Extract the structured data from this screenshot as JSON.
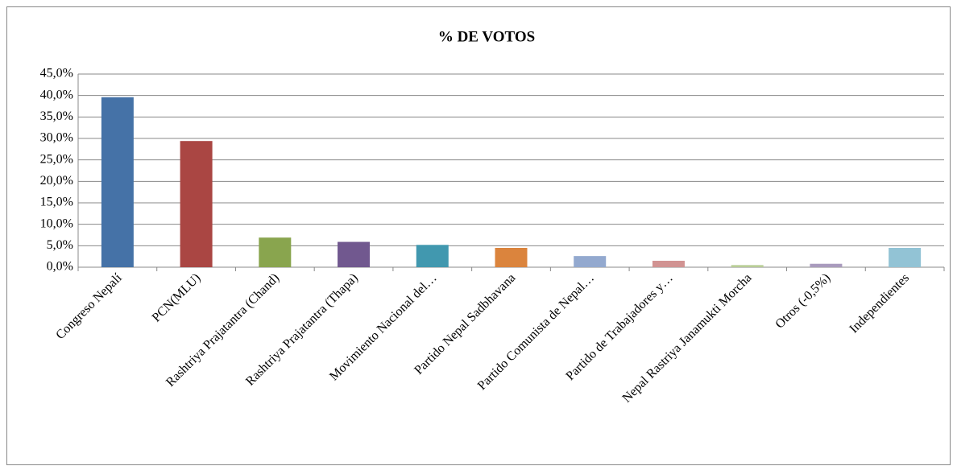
{
  "chart_data": {
    "type": "bar",
    "title": "% DE VOTOS",
    "categories": [
      "Congreso Nepalí",
      "PCN(MLU)",
      "Rashtriya Prajatantra  (Chand)",
      "Rashtriya Prajatantra (Thapa)",
      "Movimiento Nacional del…",
      "Partido Nepal Sadbhavana",
      "Partido Comunista de Nepal…",
      "Partido de Trabajadores y…",
      "Nepal Rastriya Janamukti Morcha",
      "Otros (-0,5%)",
      "Independientes"
    ],
    "values": [
      39.6,
      29.4,
      6.9,
      5.9,
      5.2,
      4.5,
      2.6,
      1.5,
      0.5,
      0.8,
      4.5
    ],
    "colors": [
      "#4572a7",
      "#aa4643",
      "#89a54e",
      "#71588f",
      "#4198af",
      "#db843d",
      "#93a9cf",
      "#d19392",
      "#b9cd96",
      "#a99bbd",
      "#92c3d5"
    ],
    "ylim": [
      0,
      45
    ],
    "yticks": [
      {
        "value": 0,
        "label": "0,0%"
      },
      {
        "value": 5,
        "label": "5,0%"
      },
      {
        "value": 10,
        "label": "10,0%"
      },
      {
        "value": 15,
        "label": "15,0%"
      },
      {
        "value": 20,
        "label": "20,0%"
      },
      {
        "value": 25,
        "label": "25,0%"
      },
      {
        "value": 30,
        "label": "30,0%"
      },
      {
        "value": 35,
        "label": "35,0%"
      },
      {
        "value": 40,
        "label": "40,0%"
      },
      {
        "value": 45,
        "label": "45,0%"
      }
    ],
    "grid": true
  }
}
